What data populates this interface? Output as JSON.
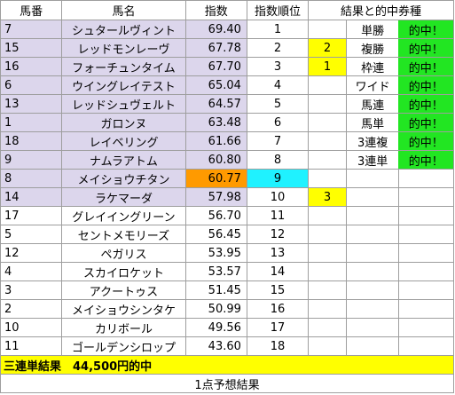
{
  "headers": [
    "馬番",
    "馬名",
    "指数",
    "指数順位",
    "結果と的中券種"
  ],
  "rows": [
    {
      "num": "7",
      "name": "シュタールヴィント",
      "score": "69.40",
      "rank": "1",
      "hit": "",
      "ticket": "単勝",
      "result": "的中！"
    },
    {
      "num": "15",
      "name": "レッドモンレーヴ",
      "score": "67.78",
      "rank": "2",
      "hit": "2",
      "ticket": "複勝",
      "result": "的中！"
    },
    {
      "num": "16",
      "name": "フォーチュンタイム",
      "score": "67.70",
      "rank": "3",
      "hit": "1",
      "ticket": "枠連",
      "result": "的中！"
    },
    {
      "num": "6",
      "name": "ウイングレイテスト",
      "score": "65.04",
      "rank": "4",
      "hit": "",
      "ticket": "ワイド",
      "result": "的中！"
    },
    {
      "num": "13",
      "name": "レッドシュヴェルト",
      "score": "64.57",
      "rank": "5",
      "hit": "",
      "ticket": "馬連",
      "result": "的中！"
    },
    {
      "num": "1",
      "name": "ガロンヌ",
      "score": "63.48",
      "rank": "6",
      "hit": "",
      "ticket": "馬単",
      "result": "的中！"
    },
    {
      "num": "18",
      "name": "レイベリング",
      "score": "61.66",
      "rank": "7",
      "hit": "",
      "ticket": "3連複",
      "result": "的中！"
    },
    {
      "num": "9",
      "name": "ナムラアトム",
      "score": "60.80",
      "rank": "8",
      "hit": "",
      "ticket": "3連単",
      "result": "的中！"
    },
    {
      "num": "8",
      "name": "メイショウチタン",
      "score": "60.77",
      "rank": "9",
      "hit": "",
      "ticket": "",
      "result": ""
    },
    {
      "num": "14",
      "name": "ラケマーダ",
      "score": "57.98",
      "rank": "10",
      "hit": "3",
      "ticket": "",
      "result": ""
    },
    {
      "num": "17",
      "name": "グレイイングリーン",
      "score": "56.70",
      "rank": "11",
      "hit": "",
      "ticket": "",
      "result": ""
    },
    {
      "num": "5",
      "name": "セントメモリーズ",
      "score": "56.45",
      "rank": "12",
      "hit": "",
      "ticket": "",
      "result": ""
    },
    {
      "num": "12",
      "name": "ペガリス",
      "score": "53.95",
      "rank": "13",
      "hit": "",
      "ticket": "",
      "result": ""
    },
    {
      "num": "4",
      "name": "スカイロケット",
      "score": "53.57",
      "rank": "14",
      "hit": "",
      "ticket": "",
      "result": ""
    },
    {
      "num": "3",
      "name": "アクートゥス",
      "score": "51.45",
      "rank": "15",
      "hit": "",
      "ticket": "",
      "result": ""
    },
    {
      "num": "2",
      "name": "メイショウシンタケ",
      "score": "50.99",
      "rank": "16",
      "hit": "",
      "ticket": "",
      "result": ""
    },
    {
      "num": "10",
      "name": "カリボール",
      "score": "49.56",
      "rank": "17",
      "hit": "",
      "ticket": "",
      "result": ""
    },
    {
      "num": "11",
      "name": "ゴールデンシロップ",
      "score": "43.60",
      "rank": "18",
      "hit": "",
      "ticket": "",
      "result": ""
    }
  ],
  "summary": "三連単結果　44,500円的中",
  "caption": "1点予想結果",
  "colors": {
    "highlight_rows": "#dcd6ec",
    "score_highlight": "#ff9a00",
    "rank_highlight": "#1ff2ff",
    "hit_marker": "#ffff00",
    "result_hit": "#22e622",
    "summary_bg": "#ffff00"
  }
}
